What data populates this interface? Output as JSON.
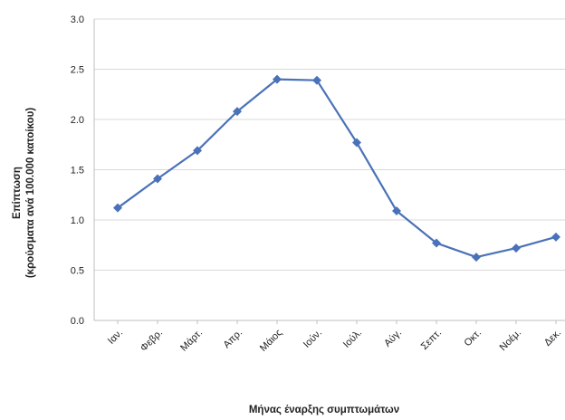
{
  "chart_data": {
    "type": "line",
    "title": "",
    "xlabel": "Μήνας έναρξης συμπτωμάτων",
    "ylabel_line1": "Επίπτωση",
    "ylabel_line2": "(κρούσματα ανά 100.000 κατοίκου)",
    "ylim": [
      0,
      3
    ],
    "yticks": [
      "0.0",
      "0.5",
      "1.0",
      "1.5",
      "2.0",
      "2.5",
      "3.0"
    ],
    "grid": true,
    "legend": "none",
    "categories": [
      "Ιαν.",
      "Φεβρ.",
      "Μάρτ.",
      "Απρ.",
      "Μάιος",
      "Ιούν.",
      "Ιούλ.",
      "Αύγ.",
      "Σεπτ.",
      "Οκτ.",
      "Νοέμ.",
      "Δεκ."
    ],
    "series": [
      {
        "color": "#4a72b8",
        "values": [
          1.12,
          1.41,
          1.69,
          2.08,
          2.4,
          2.39,
          1.77,
          1.09,
          0.77,
          0.63,
          0.72,
          0.83
        ]
      }
    ]
  }
}
